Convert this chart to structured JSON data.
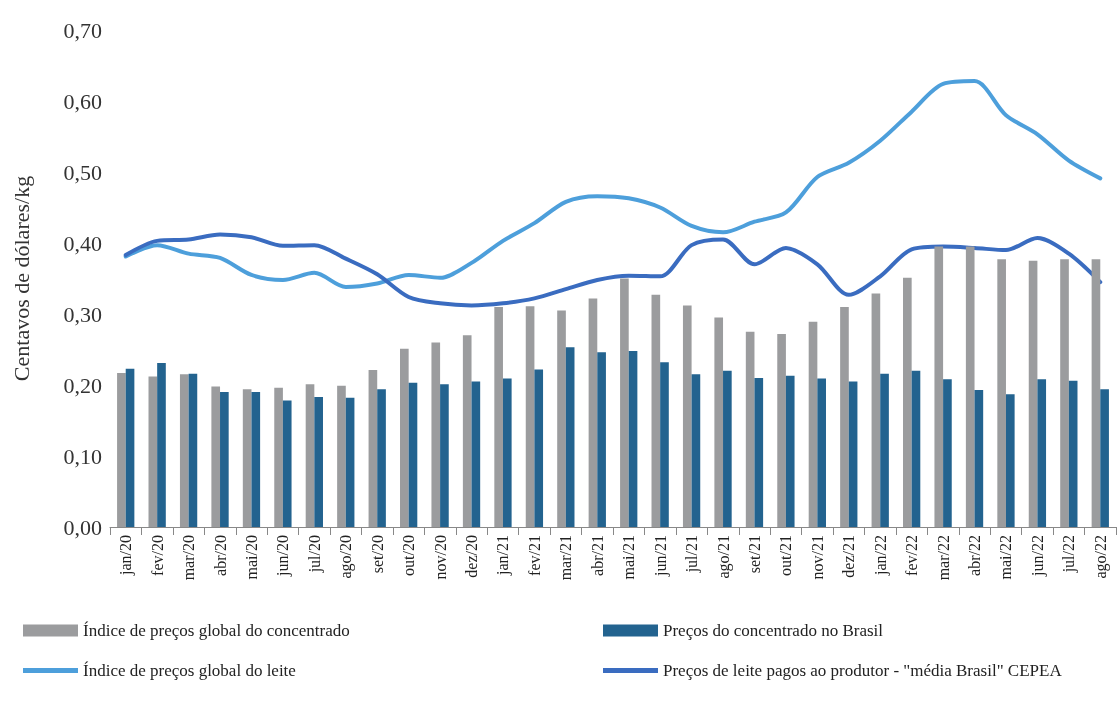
{
  "chart_data": {
    "type": "bar",
    "ylabel": "Centavos de dólares/kg",
    "categories": [
      "jan/20",
      "fev/20",
      "mar/20",
      "abr/20",
      "mai/20",
      "jun/20",
      "jul/20",
      "ago/20",
      "set/20",
      "out/20",
      "nov/20",
      "dez/20",
      "jan/21",
      "fev/21",
      "mar/21",
      "abr/21",
      "mai/21",
      "jun/21",
      "jul/21",
      "ago/21",
      "set/21",
      "out/21",
      "nov/21",
      "dez/21",
      "jan/22",
      "fev/22",
      "mar/22",
      "abr/22",
      "mai/22",
      "jun/22",
      "jul/22",
      "ago/22"
    ],
    "series": [
      {
        "name": "Índice de preços global do concentrado",
        "color": "#9b9c9e",
        "values": [
          0.217,
          0.212,
          0.215,
          0.198,
          0.194,
          0.196,
          0.201,
          0.199,
          0.221,
          0.251,
          0.26,
          0.27,
          0.31,
          0.311,
          0.305,
          0.322,
          0.35,
          0.327,
          0.312,
          0.295,
          0.275,
          0.272,
          0.289,
          0.31,
          0.329,
          0.351,
          0.395,
          0.395,
          0.377,
          0.375,
          0.377,
          0.377
        ]
      },
      {
        "name": "Preços do concentrado no Brasil",
        "color": "#23638f",
        "values": [
          0.223,
          0.231,
          0.216,
          0.19,
          0.19,
          0.178,
          0.183,
          0.182,
          0.194,
          0.203,
          0.201,
          0.205,
          0.209,
          0.222,
          0.253,
          0.246,
          0.248,
          0.232,
          0.215,
          0.22,
          0.21,
          0.213,
          0.209,
          0.205,
          0.216,
          0.22,
          0.208,
          0.193,
          0.187,
          0.208,
          0.206,
          0.194
        ]
      },
      {
        "name": "Índice de preços global do leite",
        "type": "line",
        "color": "#4d9fdb",
        "values": [
          0.381,
          0.397,
          0.385,
          0.379,
          0.355,
          0.348,
          0.358,
          0.338,
          0.343,
          0.355,
          0.351,
          0.372,
          0.403,
          0.428,
          0.458,
          0.466,
          0.463,
          0.45,
          0.424,
          0.415,
          0.43,
          0.443,
          0.493,
          0.513,
          0.544,
          0.585,
          0.624,
          0.628,
          0.58,
          0.553,
          0.516,
          0.491
        ]
      },
      {
        "name": "Preços de leite pagos ao produtor - \"média Brasil\" CEPEA",
        "type": "line",
        "color": "#3a6cc0",
        "values": [
          0.383,
          0.403,
          0.405,
          0.412,
          0.408,
          0.396,
          0.397,
          0.378,
          0.356,
          0.324,
          0.315,
          0.312,
          0.315,
          0.322,
          0.335,
          0.348,
          0.354,
          0.353,
          0.397,
          0.405,
          0.37,
          0.393,
          0.37,
          0.327,
          0.353,
          0.391,
          0.395,
          0.393,
          0.39,
          0.407,
          0.385,
          0.345
        ]
      }
    ],
    "ylim": [
      0,
      0.7
    ],
    "yticks": [
      {
        "value": 0,
        "label": "0,00"
      },
      {
        "value": 0.1,
        "label": "0,10"
      },
      {
        "value": 0.2,
        "label": "0,20"
      },
      {
        "value": 0.3,
        "label": "0,30"
      },
      {
        "value": 0.4,
        "label": "0,40"
      },
      {
        "value": 0.5,
        "label": "0,50"
      },
      {
        "value": 0.6,
        "label": "0,60"
      },
      {
        "value": 0.7,
        "label": "0,70"
      }
    ],
    "grid": false,
    "legend": "bottom",
    "marker": "none",
    "line_style": "solid"
  }
}
